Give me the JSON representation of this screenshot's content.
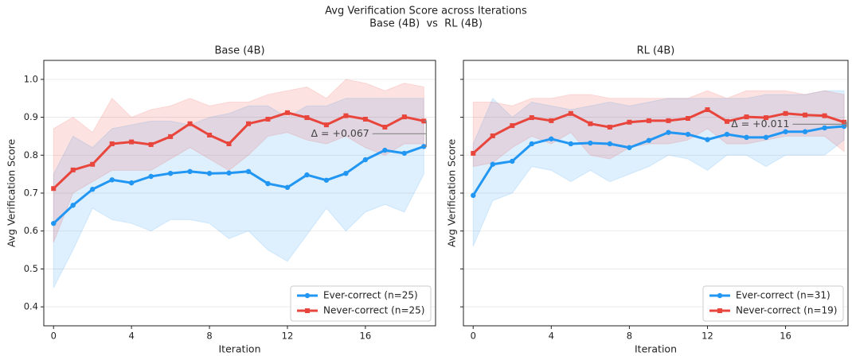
{
  "figure": {
    "title": "Avg Verification Score across Iterations",
    "subtitle": "Base (4B)  vs  RL (4B)"
  },
  "chart_data": [
    {
      "type": "line",
      "title": "Base (4B)",
      "xlabel": "Iteration",
      "ylabel": "Avg Verification Score",
      "x": [
        0,
        1,
        2,
        3,
        4,
        5,
        6,
        7,
        8,
        9,
        10,
        11,
        12,
        13,
        14,
        15,
        16,
        17,
        18,
        19
      ],
      "xlim": [
        -0.5,
        19.6
      ],
      "xticks": [
        0,
        4,
        8,
        12,
        16
      ],
      "ylim": [
        0.35,
        1.05
      ],
      "yticks": [
        0.4,
        0.5,
        0.6,
        0.7,
        0.8,
        0.9,
        {
          "value": 1,
          "label": "1.0"
        }
      ],
      "grid": true,
      "legend": "lower right",
      "annotation": "Δ = +0.067",
      "series": [
        {
          "name": "Ever-correct (n=25)",
          "color": "#2196f3",
          "marker": "circle",
          "values": [
            0.62,
            0.668,
            0.71,
            0.735,
            0.727,
            0.744,
            0.752,
            0.757,
            0.752,
            0.753,
            0.757,
            0.725,
            0.715,
            0.748,
            0.734,
            0.752,
            0.788,
            0.813,
            0.805,
            0.823
          ],
          "band_upper": [
            0.75,
            0.85,
            0.82,
            0.87,
            0.88,
            0.89,
            0.89,
            0.88,
            0.9,
            0.91,
            0.93,
            0.93,
            0.9,
            0.93,
            0.93,
            0.95,
            0.95,
            0.95,
            0.95,
            0.95
          ],
          "band_lower": [
            0.45,
            0.55,
            0.66,
            0.63,
            0.62,
            0.6,
            0.63,
            0.63,
            0.62,
            0.58,
            0.6,
            0.55,
            0.52,
            0.59,
            0.66,
            0.6,
            0.65,
            0.67,
            0.65,
            0.75
          ]
        },
        {
          "name": "Never-correct (n=25)",
          "color": "#e8453c",
          "marker": "square",
          "values": [
            0.712,
            0.761,
            0.776,
            0.83,
            0.835,
            0.828,
            0.849,
            0.883,
            0.853,
            0.83,
            0.883,
            0.895,
            0.912,
            0.899,
            0.88,
            0.904,
            0.895,
            0.874,
            0.901,
            0.89
          ],
          "band_upper": [
            0.87,
            0.9,
            0.86,
            0.95,
            0.9,
            0.92,
            0.93,
            0.95,
            0.93,
            0.94,
            0.94,
            0.96,
            0.97,
            0.98,
            0.95,
            1.0,
            0.99,
            0.97,
            0.99,
            0.98
          ],
          "band_lower": [
            0.57,
            0.7,
            0.73,
            0.76,
            0.76,
            0.76,
            0.79,
            0.82,
            0.79,
            0.76,
            0.8,
            0.85,
            0.86,
            0.84,
            0.83,
            0.85,
            0.82,
            0.8,
            0.83,
            0.83
          ]
        }
      ]
    },
    {
      "type": "line",
      "title": "RL (4B)",
      "xlabel": "Iteration",
      "ylabel": "Avg Verification Score",
      "x": [
        0,
        1,
        2,
        3,
        4,
        5,
        6,
        7,
        8,
        9,
        10,
        11,
        12,
        13,
        14,
        15,
        16,
        17,
        18,
        19
      ],
      "xlim": [
        -0.5,
        19.2
      ],
      "xticks": [
        0,
        4,
        8,
        12,
        16
      ],
      "sharey": true,
      "grid": true,
      "legend": "lower right",
      "annotation": "Δ = +0.011",
      "series": [
        {
          "name": "Ever-correct (n=31)",
          "color": "#2196f3",
          "marker": "circle",
          "values": [
            0.694,
            0.776,
            0.784,
            0.83,
            0.843,
            0.83,
            0.832,
            0.83,
            0.82,
            0.839,
            0.86,
            0.855,
            0.841,
            0.855,
            0.847,
            0.847,
            0.862,
            0.862,
            0.872,
            0.876
          ],
          "band_upper": [
            0.83,
            0.95,
            0.9,
            0.94,
            0.93,
            0.92,
            0.93,
            0.94,
            0.93,
            0.94,
            0.95,
            0.95,
            0.95,
            0.95,
            0.95,
            0.96,
            0.96,
            0.96,
            0.97,
            0.97
          ],
          "band_lower": [
            0.56,
            0.68,
            0.7,
            0.77,
            0.76,
            0.73,
            0.76,
            0.73,
            0.75,
            0.77,
            0.8,
            0.79,
            0.76,
            0.8,
            0.8,
            0.77,
            0.8,
            0.8,
            0.8,
            0.84
          ]
        },
        {
          "name": "Never-correct (n=19)",
          "color": "#e8453c",
          "marker": "square",
          "values": [
            0.805,
            0.851,
            0.878,
            0.899,
            0.891,
            0.91,
            0.883,
            0.874,
            0.887,
            0.891,
            0.891,
            0.897,
            0.92,
            0.889,
            0.901,
            0.899,
            0.91,
            0.906,
            0.904,
            0.887
          ],
          "band_upper": [
            0.94,
            0.94,
            0.93,
            0.95,
            0.95,
            0.96,
            0.96,
            0.95,
            0.95,
            0.95,
            0.95,
            0.95,
            0.97,
            0.95,
            0.97,
            0.97,
            0.97,
            0.96,
            0.97,
            0.96
          ],
          "band_lower": [
            0.77,
            0.78,
            0.82,
            0.85,
            0.83,
            0.86,
            0.8,
            0.79,
            0.82,
            0.83,
            0.83,
            0.84,
            0.87,
            0.83,
            0.83,
            0.84,
            0.85,
            0.85,
            0.85,
            0.81
          ]
        }
      ]
    }
  ]
}
